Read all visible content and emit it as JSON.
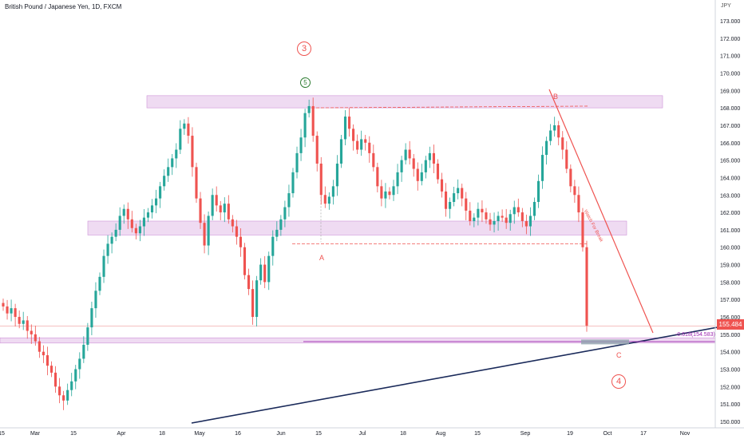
{
  "header": {
    "symbol_title": "British Pound / Japanese Yen, 1D, FXCM",
    "currency": "JPY"
  },
  "price_axis": {
    "ticks": [
      "173.000",
      "172.000",
      "171.000",
      "170.000",
      "169.000",
      "168.000",
      "167.000",
      "166.000",
      "165.000",
      "164.000",
      "163.000",
      "162.000",
      "161.000",
      "160.000",
      "159.000",
      "158.000",
      "157.000",
      "156.000",
      "155.000",
      "154.000",
      "153.000",
      "152.000",
      "151.000",
      "150.000"
    ],
    "current_price": "155.484"
  },
  "time_axis": {
    "ticks": [
      "15",
      "Mar",
      "15",
      "Apr",
      "18",
      "May",
      "16",
      "Jun",
      "15",
      "Jul",
      "18",
      "Aug",
      "15",
      "Sep",
      "19",
      "Oct",
      "17",
      "Nov"
    ]
  },
  "annotations": {
    "fib_label": "-0.618(154.583)",
    "wave_3": "3",
    "wave_5": "5",
    "wave_4": "4",
    "label_a": "A",
    "label_b": "B",
    "label_c": "C",
    "trendline_note": "Watch For Break"
  },
  "colors": {
    "up": "#26a69a",
    "down": "#ef5350",
    "zone": "#e1bee7",
    "trendline": "#1a2a5a",
    "fib": "#9c27b0"
  },
  "chart_data": {
    "type": "candlestick",
    "title": "British Pound / Japanese Yen, 1D, FXCM",
    "ylabel": "JPY",
    "ylim": [
      149.8,
      173.8
    ],
    "x_ticks": [
      "15",
      "Mar",
      "15",
      "Apr",
      "18",
      "May",
      "16",
      "Jun",
      "15",
      "Jul",
      "18",
      "Aug",
      "15",
      "Sep",
      "19",
      "Oct",
      "17",
      "Nov"
    ],
    "current_price": 155.484,
    "zones": [
      [
        168.0,
        168.7
      ],
      [
        160.7,
        161.5
      ],
      [
        154.5,
        154.8
      ]
    ],
    "fib_level": 154.583,
    "closes": [
      156.6,
      156.2,
      156.5,
      156.0,
      155.6,
      155.8,
      155.2,
      155.0,
      154.6,
      154.0,
      153.8,
      153.2,
      152.8,
      152.0,
      151.5,
      151.2,
      151.8,
      152.3,
      153.0,
      153.6,
      154.4,
      155.4,
      156.5,
      157.5,
      158.3,
      159.5,
      160.2,
      160.6,
      161.0,
      161.8,
      162.2,
      161.6,
      161.1,
      160.8,
      161.2,
      161.7,
      162.0,
      162.4,
      162.8,
      163.5,
      164.1,
      164.6,
      165.1,
      165.6,
      166.8,
      167.1,
      166.4,
      164.6,
      162.8,
      161.4,
      160.1,
      161.8,
      163.0,
      162.4,
      162.0,
      162.5,
      161.6,
      161.2,
      160.6,
      160.0,
      158.4,
      157.6,
      156.0,
      158.1,
      159.0,
      158.0,
      159.5,
      160.6,
      161.0,
      161.6,
      162.3,
      163.1,
      164.3,
      165.4,
      166.3,
      167.7,
      168.1,
      166.4,
      164.8,
      163.0,
      162.5,
      162.9,
      163.5,
      164.8,
      166.2,
      167.5,
      166.8,
      166.1,
      165.6,
      166.2,
      166.0,
      165.4,
      164.6,
      163.5,
      162.8,
      163.2,
      163.0,
      163.5,
      164.3,
      165.0,
      165.6,
      165.1,
      164.5,
      163.8,
      164.3,
      165.0,
      165.4,
      164.8,
      163.9,
      163.2,
      162.2,
      162.6,
      163.1,
      163.4,
      162.8,
      162.1,
      161.5,
      161.7,
      162.2,
      162.0,
      161.6,
      161.3,
      161.5,
      161.8,
      161.7,
      161.4,
      161.9,
      162.3,
      162.0,
      161.5,
      161.2,
      161.8,
      162.6,
      163.8,
      165.3,
      166.1,
      166.7,
      167.0,
      166.3,
      165.6,
      164.5,
      163.5,
      163.0,
      162.0,
      160.0,
      155.5
    ]
  }
}
